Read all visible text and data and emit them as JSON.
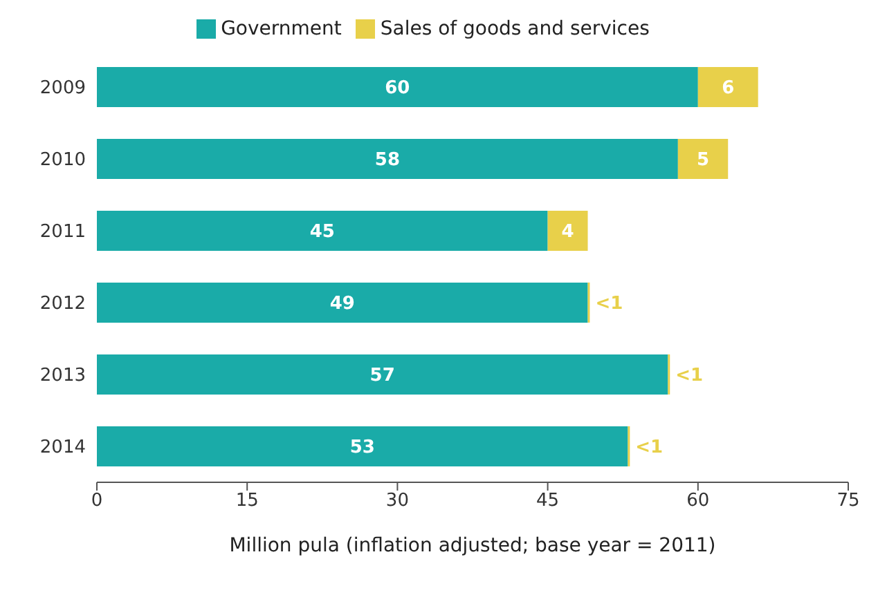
{
  "chart_data": {
    "type": "bar",
    "orientation": "horizontal",
    "stacked": true,
    "xlabel": "Million pula (inflation adjusted; base year = 2011)",
    "categories": [
      "2009",
      "2010",
      "2011",
      "2012",
      "2013",
      "2014"
    ],
    "series": [
      {
        "name": "Government",
        "color": "#1aaba8",
        "values": [
          60,
          58,
          45,
          49,
          57,
          53
        ],
        "value_labels": [
          "60",
          "58",
          "45",
          "49",
          "57",
          "53"
        ]
      },
      {
        "name": "Sales of goods and services",
        "color": "#e8d04a",
        "values": [
          6,
          5,
          4,
          0.2,
          0.2,
          0.2
        ],
        "value_labels": [
          "6",
          "5",
          "4",
          "<1",
          "<1",
          "<1"
        ]
      }
    ],
    "xlim": [
      0,
      75
    ],
    "xticks": [
      0,
      15,
      30,
      45,
      60,
      75
    ],
    "grid": false,
    "legend": "top"
  }
}
